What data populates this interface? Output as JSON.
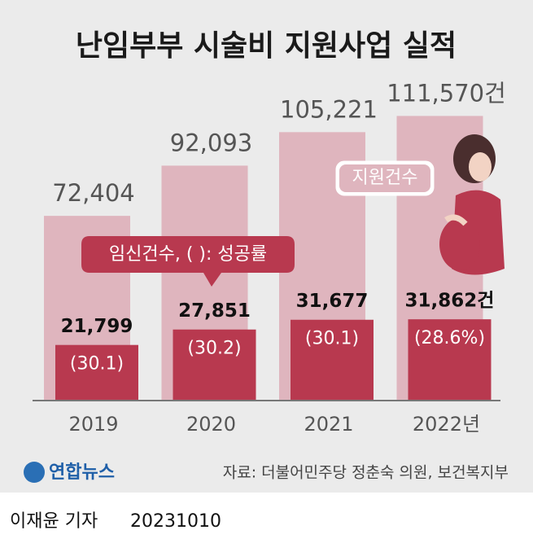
{
  "chart_data": {
    "type": "bar",
    "title": "난임부부 시술비 지원사업 실적",
    "categories": [
      "2019",
      "2020",
      "2021",
      "2022년"
    ],
    "series": [
      {
        "name": "지원건수",
        "color": "#dfb5be",
        "values": [
          72404,
          92093,
          105221,
          111570
        ],
        "value_labels": [
          "72,404",
          "92,093",
          "105,221",
          "111,570건"
        ]
      },
      {
        "name": "임신건수, ( ): 성공률",
        "color": "#b8394f",
        "values": [
          21799,
          27851,
          31677,
          31862
        ],
        "value_labels": [
          "21,799",
          "27,851",
          "31,677",
          "31,862건"
        ],
        "rates": [
          30.1,
          30.2,
          30.1,
          28.6
        ],
        "rate_labels": [
          "(30.1)",
          "(30.2)",
          "(30.1)",
          "(28.6%)"
        ]
      }
    ],
    "ylim": [
      0,
      120000
    ]
  },
  "source": "자료: 더불어민주당 정춘숙 의원, 보건복지부",
  "logo": "연합뉴스",
  "byline": "이재윤 기자",
  "date": "20231010"
}
